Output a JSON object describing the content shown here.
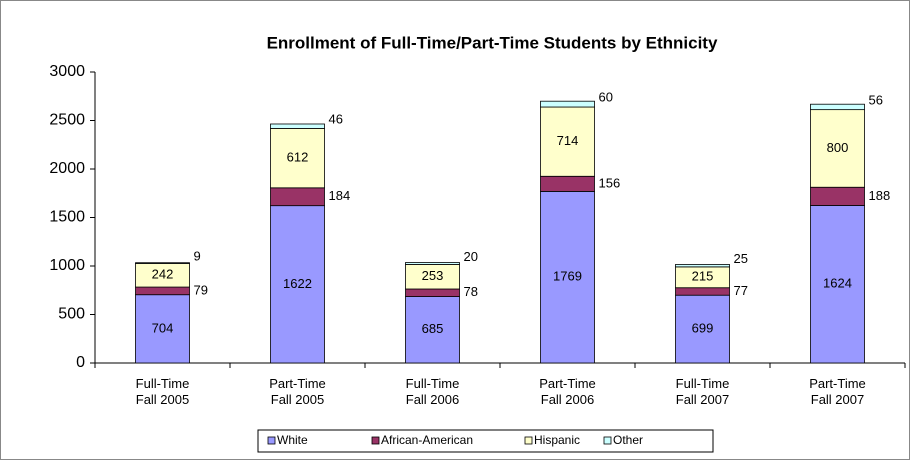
{
  "chart_data": {
    "type": "stacked_bar",
    "title": "Enrollment of Full-Time/Part-Time Students by Ethnicity",
    "categories": [
      "Full-Time\nFall 2005",
      "Part-Time\nFall 2005",
      "Full-Time\nFall 2006",
      "Part-Time\nFall 2006",
      "Full-Time\nFall 2007",
      "Part-Time\nFall 2007"
    ],
    "series": [
      {
        "name": "White",
        "color": "#9999ff",
        "values": [
          704,
          1622,
          685,
          1769,
          699,
          1624
        ]
      },
      {
        "name": "African-American",
        "color": "#993366",
        "values": [
          79,
          184,
          78,
          156,
          77,
          188
        ]
      },
      {
        "name": "Hispanic",
        "color": "#ffffcc",
        "values": [
          242,
          612,
          253,
          714,
          215,
          800
        ]
      },
      {
        "name": "Other",
        "color": "#ccffff",
        "values": [
          9,
          46,
          20,
          60,
          25,
          56
        ]
      }
    ],
    "ylim": [
      0,
      3000
    ],
    "yticks": [
      0,
      500,
      1000,
      1500,
      2000,
      2500,
      3000
    ],
    "grid": false,
    "legend": "bottom"
  }
}
